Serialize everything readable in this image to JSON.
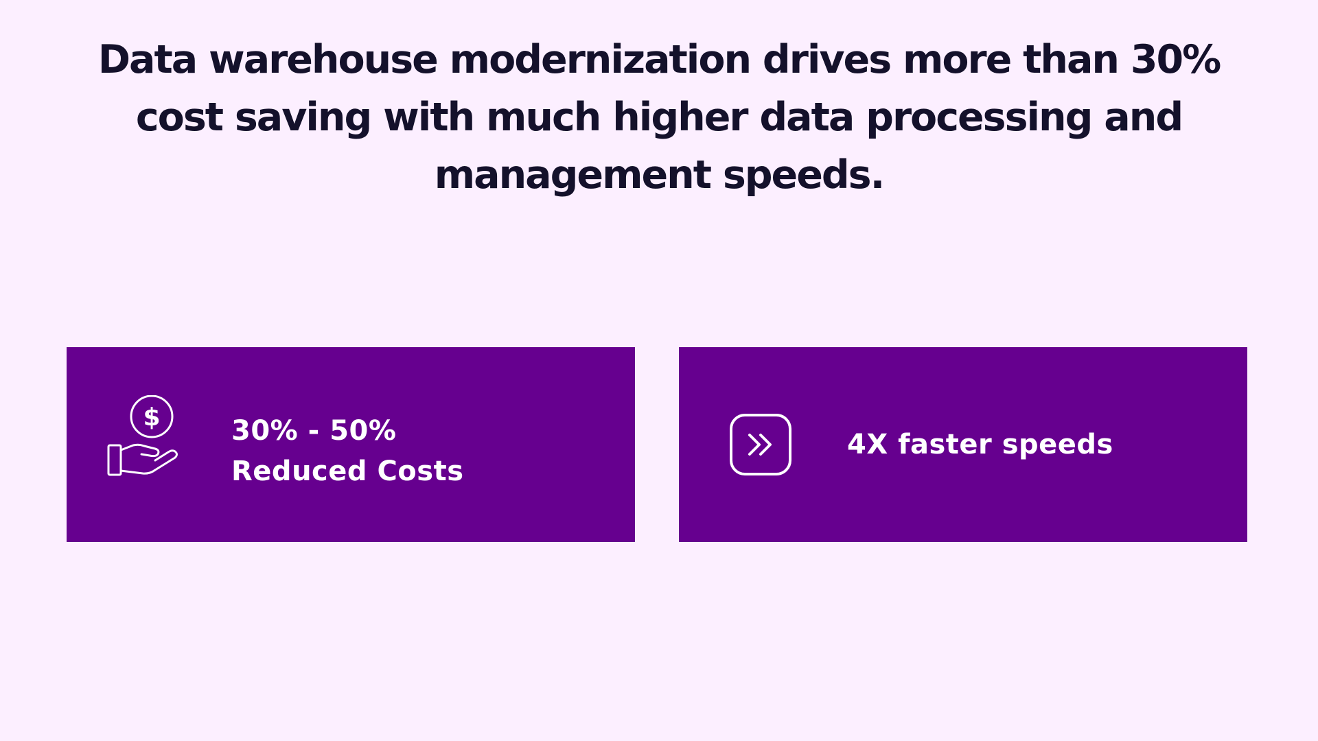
{
  "headline": "Data warehouse modernization drives more than 30% cost saving with much higher data processing and management speeds.",
  "colors": {
    "background": "#fcefff",
    "card": "#66008f",
    "headline_text": "#14112b",
    "card_text": "#ffffff"
  },
  "cards": [
    {
      "icon": "dollar-hand-icon",
      "line1": "30% - 50%",
      "line2": "Reduced Costs"
    },
    {
      "icon": "fast-forward-icon",
      "text": "4X faster speeds"
    }
  ]
}
